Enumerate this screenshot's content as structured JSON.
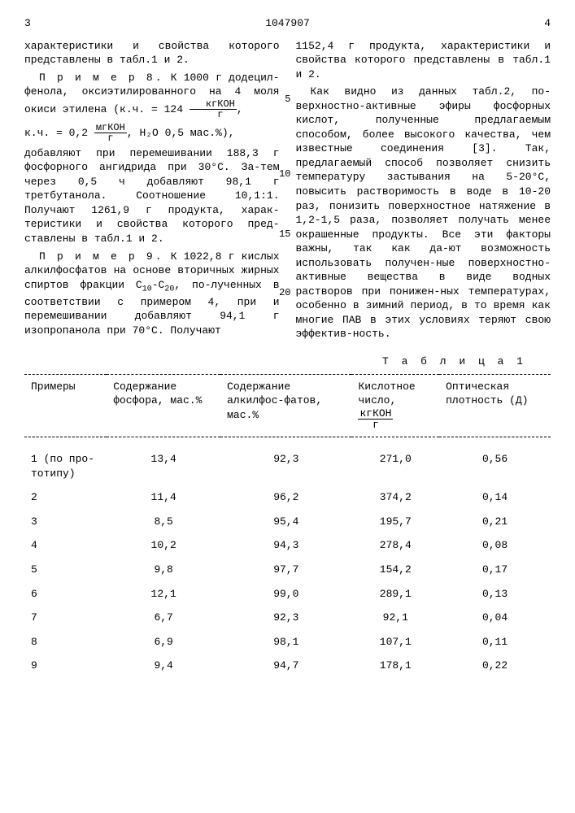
{
  "header": {
    "left_page": "3",
    "doc_number": "1047907",
    "right_page": "4"
  },
  "left_col": {
    "p1": "характеристики и свойства которого представлены в табл.1 и 2.",
    "ex8_label": "П р и м е р 8.",
    "ex8_a": " К 1000 г додецил-фенола, оксиэтилированного на 4 моля окиси этилена (к.ч. = 124 ",
    "ex8_frac1_num": "кгКОН",
    "ex8_frac1_den": "г",
    "ex8_a2": ",",
    "ex8_b": "к.ч. = 0,2 ",
    "ex8_frac2_num": "мгКОН",
    "ex8_frac2_den": "г",
    "ex8_b2": ", Н₂О 0,5 мас.%),",
    "ex8_c": "добавляют при перемешивании 188,3 г фосфорного ангидрида при 30°С. За-тем через 0,5 ч добавляют 98,1 г третбутанола. Соотношение 10,1:1. Получают 1261,9 г продукта, харак-теристики и свойства которого пред-ставлены в табл.1 и 2.",
    "ex9_label": "П р и м е р 9.",
    "ex9_a": " К 1022,8 г кислых алкилфосфатов на основе вторичных жирных спиртов фракции С",
    "ex9_sub1": "10",
    "ex9_mid": "-С",
    "ex9_sub2": "20",
    "ex9_b": ", по-лученных в соответствии с примером 4, при и перемешивании добавляют 94,1 г изопропанола при 70°С. Получают",
    "ln5": "5",
    "ln10": "10",
    "ln15": "15",
    "ln20": "20"
  },
  "right_col": {
    "p1": "1152,4 г продукта, характеристики и свойства которого представлены в табл.1 и 2.",
    "p2": "Как видно из данных табл.2, по-верхностно-активные эфиры фосфорных кислот, полученные предлагаемым способом, более высокого качества, чем известные соединения [3]. Так, предлагаемый способ позволяет снизить температуру застывания на 5-20°С, повысить растворимость в воде в 10-20 раз, понизить поверхностное натяжение в 1,2-1,5 раза, позволяет получать менее окрашенные продукты. Все эти факторы важны, так как да-ют возможность использовать получен-ные поверхностно-активные вещества в виде водных растворов при понижен-ных температурах, особенно в зимний период, в то время как многие ПАВ в этих условиях теряют свою эффектив-ность."
  },
  "table": {
    "title": "Т а б л и ц а  1",
    "headers": {
      "c1": "Примеры",
      "c2": "Содержание фосфора, мас.%",
      "c3": "Содержание алкилфос-фатов, мас.%",
      "c4a": "Кислотное число,",
      "c4_num": "кгКОН",
      "c4_den": "г",
      "c5": "Оптическая плотность (Д)"
    },
    "rows": [
      {
        "c1": "1 (по про-тотипу)",
        "c2": "13,4",
        "c3": "92,3",
        "c4": "271,0",
        "c5": "0,56"
      },
      {
        "c1": "2",
        "c2": "11,4",
        "c3": "96,2",
        "c4": "374,2",
        "c5": "0,14"
      },
      {
        "c1": "3",
        "c2": "8,5",
        "c3": "95,4",
        "c4": "195,7",
        "c5": "0,21"
      },
      {
        "c1": "4",
        "c2": "10,2",
        "c3": "94,3",
        "c4": "278,4",
        "c5": "0,08"
      },
      {
        "c1": "5",
        "c2": "9,8",
        "c3": "97,7",
        "c4": "154,2",
        "c5": "0,17"
      },
      {
        "c1": "6",
        "c2": "12,1",
        "c3": "99,0",
        "c4": "289,1",
        "c5": "0,13"
      },
      {
        "c1": "7",
        "c2": "6,7",
        "c3": "92,3",
        "c4": "92,1",
        "c5": "0,04"
      },
      {
        "c1": "8",
        "c2": "6,9",
        "c3": "98,1",
        "c4": "107,1",
        "c5": "0,11"
      },
      {
        "c1": "9",
        "c2": "9,4",
        "c3": "94,7",
        "c4": "178,1",
        "c5": "0,22"
      }
    ]
  }
}
